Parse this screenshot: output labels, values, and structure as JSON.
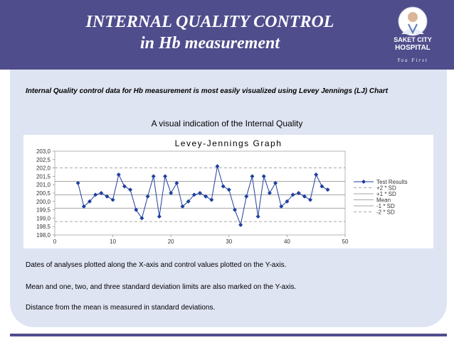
{
  "header": {
    "title_line1": "INTERNAL QUALITY CONTROL",
    "title_line2": "in Hb measurement",
    "logo_brand_line1": "SAKET CITY",
    "logo_brand_line2": "HOSPITAL",
    "logo_tagline": "You First",
    "colors": {
      "band": "#4f4d8c",
      "panel": "#dfe4f3"
    }
  },
  "content": {
    "intro": "Internal  Quality control data for Hb measurement is most easily visualized using  Levey Jennings (LJ) Chart",
    "subtitle": "A visual indication of the Internal Quality",
    "note1": "Dates of analyses plotted along the X-axis and control values  plotted on the Y-axis.",
    "note2": "Mean and one, two, and three standard deviation limits are also marked on the Y-axis.",
    "note3": " Distance from the mean is measured in standard deviations."
  },
  "chart_data": {
    "type": "line",
    "title": "Levey-Jennings Graph",
    "xlim": [
      0,
      50
    ],
    "ylim": [
      198.0,
      203.0
    ],
    "x_ticks": [
      "0",
      "10",
      "20",
      "30",
      "40",
      "50"
    ],
    "y_ticks": [
      "198,0",
      "198,5",
      "199,0",
      "199,5",
      "200,0",
      "200,5",
      "201,0",
      "201,5",
      "202,0",
      "202,5",
      "203,0"
    ],
    "x": [
      4,
      5,
      6,
      7,
      8,
      9,
      10,
      11,
      12,
      13,
      14,
      15,
      16,
      17,
      18,
      19,
      20,
      21,
      22,
      23,
      24,
      25,
      26,
      27,
      28,
      29,
      30,
      31,
      32,
      33,
      34,
      35,
      36,
      37,
      38,
      39,
      40,
      41,
      42,
      43,
      44,
      45,
      46,
      47
    ],
    "series": [
      {
        "name": "Test Results",
        "color": "#1f3f9f",
        "values": [
          201.1,
          199.7,
          200.0,
          200.4,
          200.5,
          200.3,
          200.1,
          201.6,
          200.9,
          200.7,
          199.5,
          199.0,
          200.3,
          201.5,
          199.1,
          201.5,
          200.5,
          201.1,
          199.7,
          200.0,
          200.4,
          200.5,
          200.3,
          200.1,
          202.1,
          200.9,
          200.7,
          199.5,
          198.6,
          200.3,
          201.5,
          199.1,
          201.5,
          200.5,
          201.1,
          199.7,
          200.0,
          200.4,
          200.5,
          200.3,
          200.1,
          201.6,
          200.9,
          200.7
        ]
      }
    ],
    "reference_lines": [
      {
        "name": "+2 * SD",
        "value": 202.0,
        "style": "dashed"
      },
      {
        "name": "+1 * SD",
        "value": 201.2,
        "style": "solid"
      },
      {
        "name": "Mean",
        "value": 200.4,
        "style": "solid"
      },
      {
        "name": "-1 * SD",
        "value": 199.6,
        "style": "solid"
      },
      {
        "name": "-2 * SD",
        "value": 198.8,
        "style": "dashed"
      }
    ],
    "legend_position": "right",
    "grid": false
  }
}
